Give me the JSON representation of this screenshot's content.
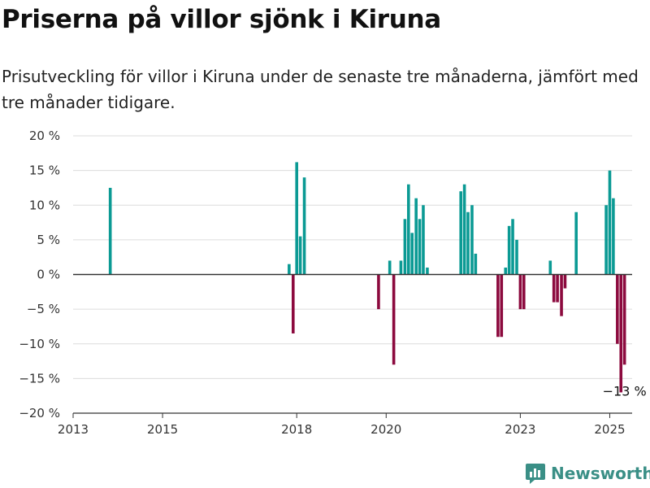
{
  "title": "Priserna på villor sjönk i Kiruna",
  "subtitle": "Prisutveckling för villor i Kiruna under de senaste tre månaderna, jämfört med tre månader tidigare.",
  "brand": {
    "name": "Newsworthy"
  },
  "colors": {
    "positive": "#0b9a94",
    "negative": "#8c0a3e",
    "brand": "#3a8f86"
  },
  "chart_data": {
    "type": "bar",
    "title": "Priserna på villor sjönk i Kiruna",
    "xlabel": "",
    "ylabel": "",
    "ylim": [
      -20,
      20
    ],
    "xlim": [
      2013.0,
      2025.5
    ],
    "grid": true,
    "y_ticks": [
      {
        "value": 20,
        "label": "20 %"
      },
      {
        "value": 15,
        "label": "15 %"
      },
      {
        "value": 10,
        "label": "10 %"
      },
      {
        "value": 5,
        "label": "5 %"
      },
      {
        "value": 0,
        "label": "0 %"
      },
      {
        "value": -5,
        "label": "−5 %"
      },
      {
        "value": -10,
        "label": "−10 %"
      },
      {
        "value": -15,
        "label": "−15 %"
      },
      {
        "value": -20,
        "label": "−20 %"
      }
    ],
    "x_ticks": [
      {
        "value": 2013,
        "label": "2013"
      },
      {
        "value": 2015,
        "label": "2015"
      },
      {
        "value": 2018,
        "label": "2018"
      },
      {
        "value": 2020,
        "label": "2020"
      },
      {
        "value": 2023,
        "label": "2023"
      },
      {
        "value": 2025,
        "label": "2025"
      }
    ],
    "annotation": {
      "x": 2025.33,
      "y": -13,
      "label": "−13 %"
    },
    "series": [
      {
        "points": [
          {
            "x": 2013.83,
            "y": 12.5
          },
          {
            "x": 2017.83,
            "y": 1.5
          },
          {
            "x": 2017.92,
            "y": -8.5
          },
          {
            "x": 2018.0,
            "y": 16.2
          },
          {
            "x": 2018.08,
            "y": 5.5
          },
          {
            "x": 2018.17,
            "y": 14.0
          },
          {
            "x": 2019.83,
            "y": -5.0
          },
          {
            "x": 2020.08,
            "y": 2.0
          },
          {
            "x": 2020.17,
            "y": -13.0
          },
          {
            "x": 2020.33,
            "y": 2.0
          },
          {
            "x": 2020.42,
            "y": 8.0
          },
          {
            "x": 2020.5,
            "y": 13.0
          },
          {
            "x": 2020.58,
            "y": 6.0
          },
          {
            "x": 2020.67,
            "y": 11.0
          },
          {
            "x": 2020.75,
            "y": 8.0
          },
          {
            "x": 2020.83,
            "y": 10.0
          },
          {
            "x": 2020.92,
            "y": 1.0
          },
          {
            "x": 2021.67,
            "y": 12.0
          },
          {
            "x": 2021.75,
            "y": 13.0
          },
          {
            "x": 2021.83,
            "y": 9.0
          },
          {
            "x": 2021.92,
            "y": 10.0
          },
          {
            "x": 2022.0,
            "y": 3.0
          },
          {
            "x": 2022.5,
            "y": -9.0
          },
          {
            "x": 2022.58,
            "y": -9.0
          },
          {
            "x": 2022.67,
            "y": 1.0
          },
          {
            "x": 2022.75,
            "y": 7.0
          },
          {
            "x": 2022.83,
            "y": 8.0
          },
          {
            "x": 2022.92,
            "y": 5.0
          },
          {
            "x": 2023.0,
            "y": -5.0
          },
          {
            "x": 2023.08,
            "y": -5.0
          },
          {
            "x": 2023.67,
            "y": 2.0
          },
          {
            "x": 2023.75,
            "y": -4.0
          },
          {
            "x": 2023.83,
            "y": -4.0
          },
          {
            "x": 2023.92,
            "y": -6.0
          },
          {
            "x": 2024.0,
            "y": -2.0
          },
          {
            "x": 2024.25,
            "y": 9.0
          },
          {
            "x": 2024.92,
            "y": 10.0
          },
          {
            "x": 2025.0,
            "y": 15.0
          },
          {
            "x": 2025.08,
            "y": 11.0
          },
          {
            "x": 2025.17,
            "y": -10.0
          },
          {
            "x": 2025.25,
            "y": -17.0
          },
          {
            "x": 2025.33,
            "y": -13.0
          }
        ]
      }
    ]
  }
}
